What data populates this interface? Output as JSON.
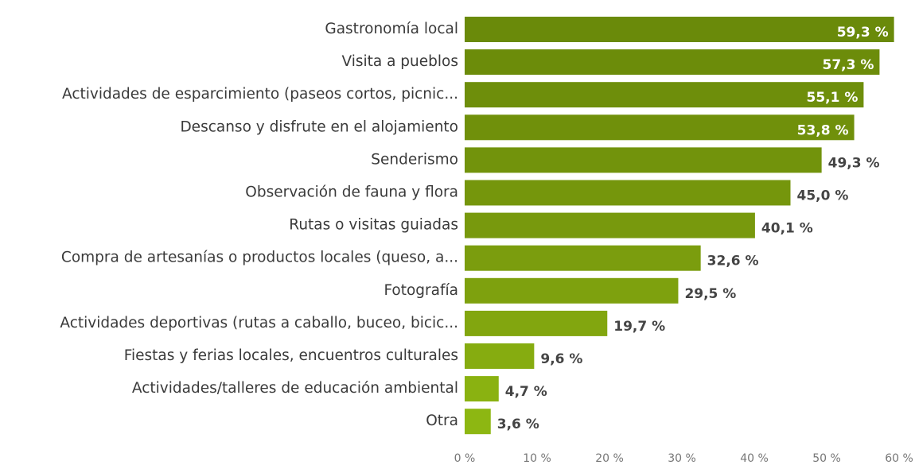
{
  "chart_data": {
    "type": "bar",
    "orientation": "horizontal",
    "categories": [
      "Gastronomía local",
      "Visita a pueblos",
      "Actividades de esparcimiento (paseos cortos, picnic...",
      "Descanso y disfrute en el alojamiento",
      "Senderismo",
      "Observación de fauna y flora",
      "Rutas o visitas guiadas",
      "Compra de artesanías o productos locales (queso, a...",
      "Fotografía",
      "Actividades deportivas (rutas a caballo, buceo, bicic...",
      "Fiestas y ferias locales, encuentros culturales",
      "Actividades/talleres de educación ambiental",
      "Otra"
    ],
    "values": [
      59.3,
      57.3,
      55.1,
      53.8,
      49.3,
      45.0,
      40.1,
      32.6,
      29.5,
      19.7,
      9.6,
      4.7,
      3.6
    ],
    "value_labels": [
      "59,3 %",
      "57,3 %",
      "55,1 %",
      "53,8 %",
      "49,3 %",
      "45,0 %",
      "40,1 %",
      "32,6 %",
      "29,5 %",
      "19,7 %",
      "9,6 %",
      "4,7 %",
      "3,6 %"
    ],
    "colors": [
      "#6a8a0a",
      "#6c8c0a",
      "#6e8e0b",
      "#70900b",
      "#72930c",
      "#75960c",
      "#78990d",
      "#7b9d0e",
      "#7ea10e",
      "#82a60f",
      "#86ac10",
      "#8ab211",
      "#8db712"
    ],
    "xlim": [
      0,
      60
    ],
    "xticks": [
      {
        "value": 0,
        "label": "0 %"
      },
      {
        "value": 10,
        "label": "10 %"
      },
      {
        "value": 20,
        "label": "20 %"
      },
      {
        "value": 30,
        "label": "30 %"
      },
      {
        "value": 40,
        "label": "40 %"
      },
      {
        "value": 50,
        "label": "50 %"
      },
      {
        "value": 60,
        "label": "60 %"
      }
    ],
    "grid": false
  }
}
